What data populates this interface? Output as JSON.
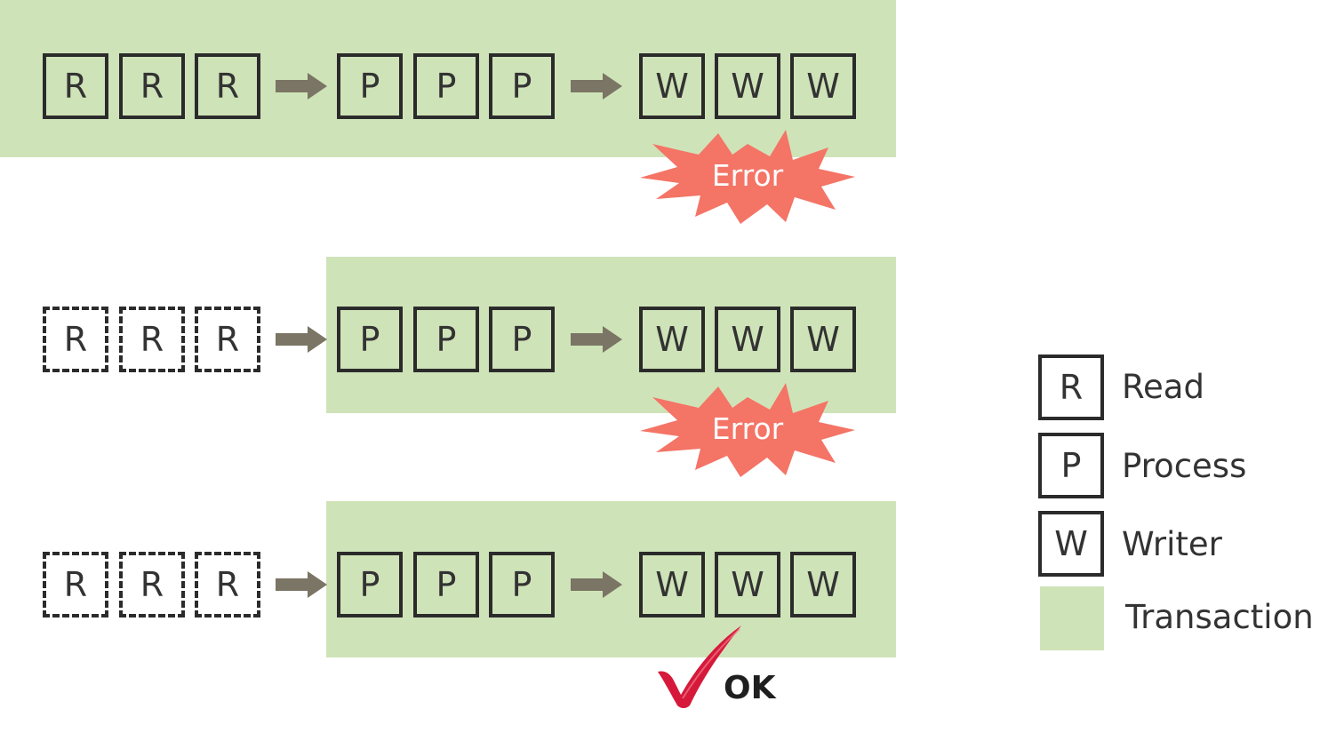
{
  "steps": {
    "read": "R",
    "process": "P",
    "write": "W"
  },
  "rows": [
    {
      "status": "Error"
    },
    {
      "status": "Error"
    },
    {
      "status": "OK"
    }
  ],
  "legend": {
    "read": {
      "symbol": "R",
      "label": "Read"
    },
    "process": {
      "symbol": "P",
      "label": "Process"
    },
    "writer": {
      "symbol": "W",
      "label": "Writer"
    },
    "transaction": {
      "label": "Transaction"
    }
  },
  "colors": {
    "transaction": "#cfe3b8",
    "arrow": "#7a7564",
    "error_burst": "#f47466",
    "check": "#d6193a",
    "box_border": "#2b2b2b"
  },
  "icons": {
    "error": "explosion-burst-icon",
    "ok": "checkmark-icon",
    "flow": "right-arrow-icon"
  }
}
